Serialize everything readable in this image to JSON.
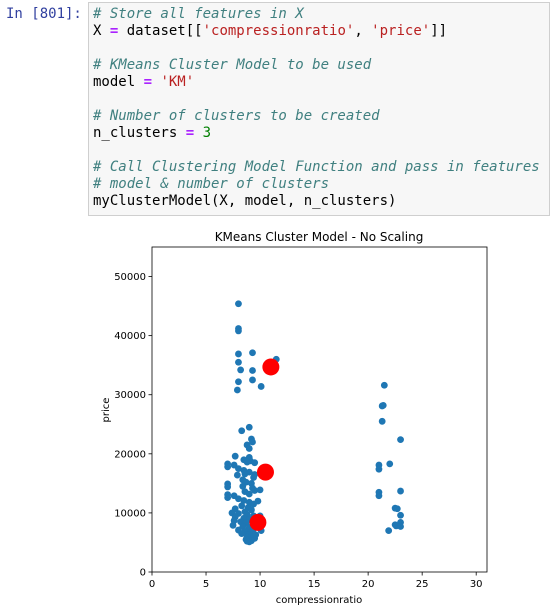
{
  "cell": {
    "prompt": "In [801]:",
    "lines": [
      [
        {
          "t": "# Store all features in X",
          "c": "cm"
        }
      ],
      [
        {
          "t": "X ",
          "c": ""
        },
        {
          "t": "=",
          "c": "op"
        },
        {
          "t": " dataset[[",
          "c": ""
        },
        {
          "t": "'compressionratio'",
          "c": "st"
        },
        {
          "t": ", ",
          "c": ""
        },
        {
          "t": "'price'",
          "c": "st"
        },
        {
          "t": "]]",
          "c": ""
        }
      ],
      [],
      [
        {
          "t": "# KMeans Cluster Model to be used",
          "c": "cm"
        }
      ],
      [
        {
          "t": "model ",
          "c": ""
        },
        {
          "t": "=",
          "c": "op"
        },
        {
          "t": " ",
          "c": ""
        },
        {
          "t": "'KM'",
          "c": "st"
        }
      ],
      [],
      [
        {
          "t": "# Number of clusters to be created",
          "c": "cm"
        }
      ],
      [
        {
          "t": "n_clusters ",
          "c": ""
        },
        {
          "t": "=",
          "c": "op"
        },
        {
          "t": " ",
          "c": ""
        },
        {
          "t": "3",
          "c": "nm"
        }
      ],
      [],
      [
        {
          "t": "# Call Clustering Model Function and pass in features",
          "c": "cm"
        }
      ],
      [
        {
          "t": "# model & number of clusters",
          "c": "cm"
        }
      ],
      [
        {
          "t": "myClusterModel(X, model, n_clusters)",
          "c": ""
        }
      ]
    ]
  },
  "chart_data": {
    "type": "scatter",
    "title": "KMeans Cluster Model - No Scaling",
    "xlabel": "compressionratio",
    "ylabel": "price",
    "xlim": [
      0,
      31
    ],
    "ylim": [
      0,
      55000
    ],
    "xticks": [
      0,
      5,
      10,
      15,
      20,
      25,
      30
    ],
    "yticks": [
      0,
      10000,
      20000,
      30000,
      40000,
      50000
    ],
    "grid": false,
    "colors": {
      "points": "#1f77b4",
      "centers": "#ff0000"
    },
    "series": [
      {
        "kind": "points",
        "points": [
          [
            8,
            45400
          ],
          [
            8,
            41200
          ],
          [
            8,
            40800
          ],
          [
            8,
            36900
          ],
          [
            9.3,
            37100
          ],
          [
            11.5,
            36000
          ],
          [
            8,
            35500
          ],
          [
            8.2,
            34200
          ],
          [
            9.3,
            34100
          ],
          [
            8,
            32200
          ],
          [
            9.3,
            32500
          ],
          [
            10.1,
            31400
          ],
          [
            7.9,
            30800
          ],
          [
            8.3,
            23900
          ],
          [
            9,
            24500
          ],
          [
            8.8,
            21500
          ],
          [
            9.2,
            22500
          ],
          [
            9.3,
            22000
          ],
          [
            9,
            20900
          ],
          [
            9,
            19400
          ],
          [
            8.5,
            19000
          ],
          [
            7.7,
            19600
          ],
          [
            9.1,
            18800
          ],
          [
            9.5,
            18500
          ],
          [
            8.8,
            18600
          ],
          [
            7,
            18300
          ],
          [
            7,
            17800
          ],
          [
            7.6,
            18100
          ],
          [
            8,
            17500
          ],
          [
            8.5,
            17200
          ],
          [
            9,
            16900
          ],
          [
            8.6,
            16600
          ],
          [
            9.5,
            16500
          ],
          [
            7.9,
            16400
          ],
          [
            9.4,
            16000
          ],
          [
            8.4,
            15600
          ],
          [
            8.7,
            15200
          ],
          [
            9.2,
            15000
          ],
          [
            7,
            14900
          ],
          [
            7,
            14400
          ],
          [
            8.4,
            14500
          ],
          [
            9.3,
            14200
          ],
          [
            9.5,
            13800
          ],
          [
            10,
            13900
          ],
          [
            8.6,
            13600
          ],
          [
            9,
            13200
          ],
          [
            7,
            13100
          ],
          [
            7,
            12600
          ],
          [
            7.6,
            12900
          ],
          [
            8,
            12400
          ],
          [
            8.5,
            12100
          ],
          [
            9,
            11800
          ],
          [
            9.4,
            11500
          ],
          [
            8.3,
            11200
          ],
          [
            8.9,
            10900
          ],
          [
            7.7,
            10700
          ],
          [
            9.2,
            10500
          ],
          [
            8.6,
            10200
          ],
          [
            7.4,
            10000
          ],
          [
            8,
            9900
          ],
          [
            8.8,
            9700
          ],
          [
            9.4,
            9500
          ],
          [
            7.7,
            9300
          ],
          [
            8.5,
            9100
          ],
          [
            9,
            8900
          ],
          [
            7.6,
            8700
          ],
          [
            8.2,
            8500
          ],
          [
            8.7,
            8300
          ],
          [
            9.3,
            8000
          ],
          [
            7.5,
            7900
          ],
          [
            8.4,
            7700
          ],
          [
            9,
            7500
          ],
          [
            9.4,
            7300
          ],
          [
            8,
            7100
          ],
          [
            8.6,
            6900
          ],
          [
            9.1,
            6700
          ],
          [
            8.3,
            6500
          ],
          [
            8.9,
            6300
          ],
          [
            9.4,
            6100
          ],
          [
            8.8,
            5900
          ],
          [
            9.5,
            5700
          ],
          [
            8.7,
            5500
          ],
          [
            9.2,
            5300
          ],
          [
            9,
            5100
          ],
          [
            9.6,
            6300
          ],
          [
            10,
            9500
          ],
          [
            9.8,
            12000
          ],
          [
            10.1,
            7000
          ],
          [
            8.8,
            5200
          ],
          [
            21.5,
            31600
          ],
          [
            21.4,
            28200
          ],
          [
            21.3,
            28100
          ],
          [
            21.3,
            25500
          ],
          [
            23,
            22400
          ],
          [
            22,
            18300
          ],
          [
            21,
            18100
          ],
          [
            21,
            17400
          ],
          [
            23,
            13700
          ],
          [
            21,
            13500
          ],
          [
            21,
            12900
          ],
          [
            22.5,
            10800
          ],
          [
            22.7,
            10700
          ],
          [
            23,
            9600
          ],
          [
            23,
            8400
          ],
          [
            22.5,
            8000
          ],
          [
            22.6,
            7800
          ],
          [
            23,
            7700
          ],
          [
            21.9,
            7000
          ]
        ]
      },
      {
        "kind": "centers",
        "points": [
          [
            11,
            34700
          ],
          [
            10.5,
            16900
          ],
          [
            9.8,
            8400
          ]
        ]
      }
    ]
  }
}
